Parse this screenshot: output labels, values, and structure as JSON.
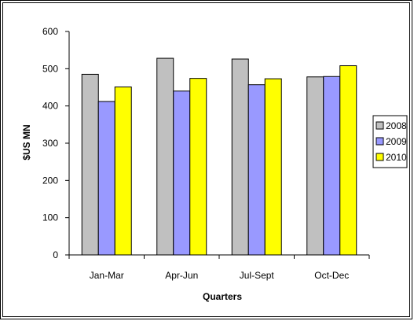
{
  "chart_data": {
    "type": "bar",
    "categories": [
      "Jan-Mar",
      "Apr-Jun",
      "Jul-Sept",
      "Oct-Dec"
    ],
    "series": [
      {
        "name": "2008",
        "values": [
          485,
          528,
          526,
          478
        ],
        "color": "#c0c0c0"
      },
      {
        "name": "2009",
        "values": [
          412,
          440,
          457,
          479
        ],
        "color": "#9999ff"
      },
      {
        "name": "2010",
        "values": [
          451,
          474,
          473,
          508
        ],
        "color": "#ffff00"
      }
    ],
    "xlabel": "Quarters",
    "ylabel": "$US MN",
    "ylim": [
      0,
      600
    ],
    "yticks": [
      0,
      100,
      200,
      300,
      400,
      500,
      600
    ],
    "grid": false,
    "legend_position": "right"
  }
}
